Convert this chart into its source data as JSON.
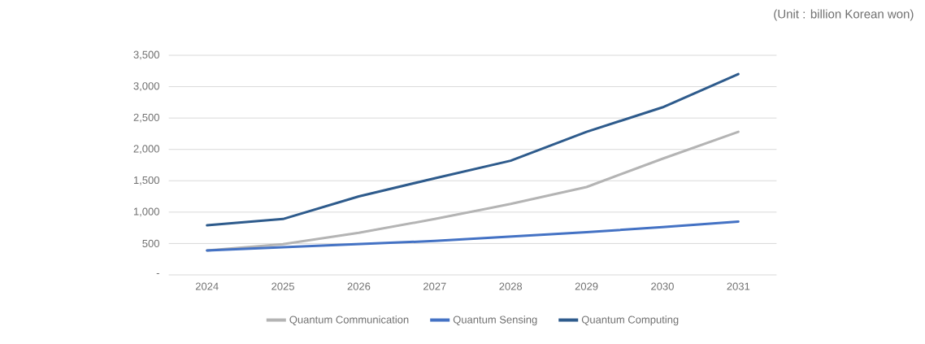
{
  "chart_data": {
    "type": "line",
    "annotations": [
      "(Unit : billion Korean won)"
    ],
    "categories": [
      "2024",
      "2025",
      "2026",
      "2027",
      "2028",
      "2029",
      "2030",
      "2031"
    ],
    "series": [
      {
        "name": "Quantum Communication",
        "color": "#b4b4b4",
        "values": [
          390,
          490,
          670,
          890,
          1130,
          1400,
          1850,
          2280
        ]
      },
      {
        "name": "Quantum Sensing",
        "color": "#4472c4",
        "values": [
          390,
          440,
          490,
          540,
          610,
          680,
          760,
          850
        ]
      },
      {
        "name": "Quantum Computing",
        "color": "#2e5b8c",
        "values": [
          790,
          890,
          1250,
          1540,
          1820,
          2280,
          2670,
          3200
        ]
      }
    ],
    "ylim": [
      0,
      3500
    ],
    "yticks": [
      {
        "value": 0,
        "label": "-"
      },
      500,
      {
        "value": 1000,
        "label": "1,000"
      },
      {
        "value": 1500,
        "label": "1,500"
      },
      {
        "value": 2000,
        "label": "2,000"
      },
      {
        "value": 2500,
        "label": "2,500"
      },
      {
        "value": 3000,
        "label": "3,000"
      },
      {
        "value": 3500,
        "label": "3,500"
      }
    ],
    "grid": "y",
    "legend": "bottom",
    "marker": "none",
    "line_style": "solid"
  }
}
